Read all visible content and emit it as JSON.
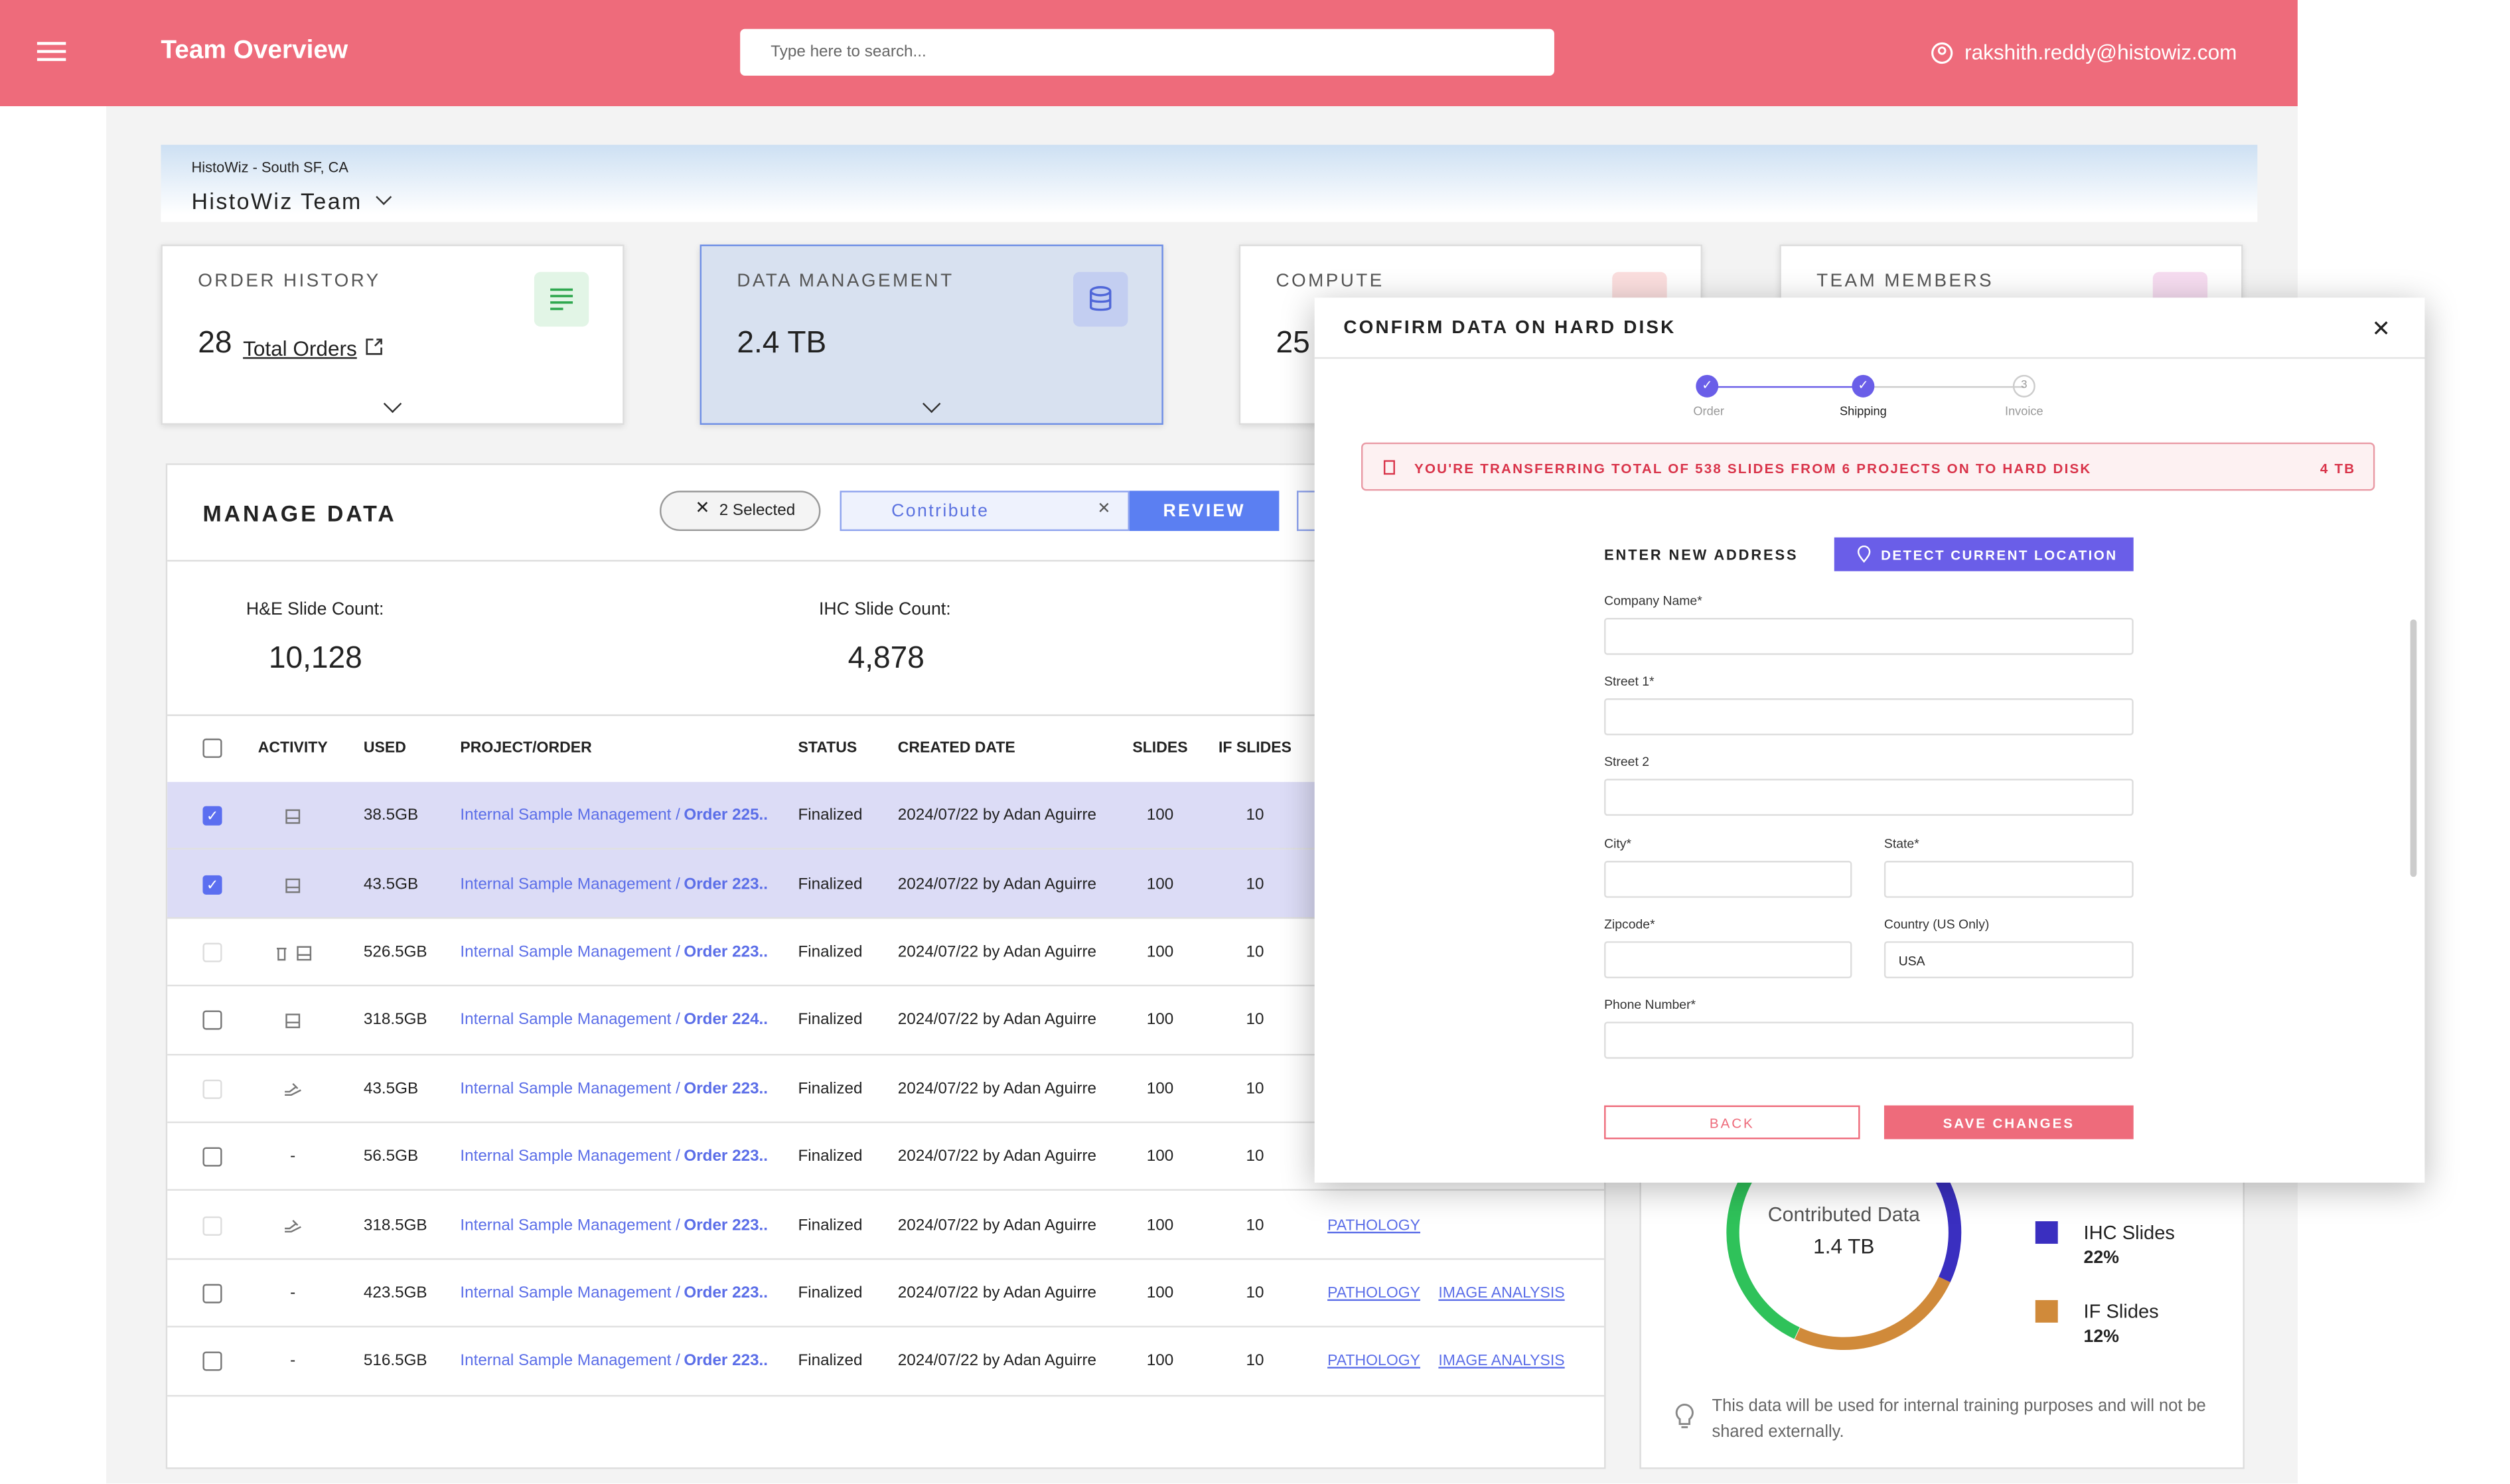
{
  "header": {
    "title": "Team Overview",
    "search_placeholder": "Type here to search...",
    "user": "rakshith.reddy@histowiz.com"
  },
  "team": {
    "location": "HistoWiz - South SF, CA",
    "name": "HistoWiz Team"
  },
  "cards": [
    {
      "title": "ORDER HISTORY",
      "value": "28",
      "label": "Total Orders"
    },
    {
      "title": "DATA MANAGEMENT",
      "value": "2.4 TB"
    },
    {
      "title": "COMPUTE",
      "value": "25"
    },
    {
      "title": "TEAM MEMBERS"
    }
  ],
  "manage": {
    "title": "MANAGE DATA",
    "selected": "2 Selected",
    "contribute": "Contribute",
    "review": "REVIEW",
    "counts": [
      {
        "label": "H&E Slide Count:",
        "value": "10,128"
      },
      {
        "label": "IHC Slide Count:",
        "value": "4,878"
      }
    ]
  },
  "table": {
    "columns": [
      "ACTIVITY",
      "USED",
      "PROJECT/ORDER",
      "STATUS",
      "CREATED DATE",
      "SLIDES",
      "IF SLIDES"
    ],
    "rows": [
      {
        "used": "38.5GB",
        "project": "Internal Sample Management /",
        "order": "Order 225..",
        "status": "Finalized",
        "created": "2024/07/22 by Adan Aguirre",
        "slides": "100",
        "if_slides": "10"
      },
      {
        "used": "43.5GB",
        "project": "Internal Sample Management /",
        "order": "Order 223..",
        "status": "Finalized",
        "created": "2024/07/22 by Adan Aguirre",
        "slides": "100",
        "if_slides": "10"
      },
      {
        "used": "526.5GB",
        "project": "Internal Sample Management /",
        "order": "Order 223..",
        "status": "Finalized",
        "created": "2024/07/22 by Adan Aguirre",
        "slides": "100",
        "if_slides": "10"
      },
      {
        "used": "318.5GB",
        "project": "Internal Sample Management /",
        "order": "Order 224..",
        "status": "Finalized",
        "created": "2024/07/22 by Adan Aguirre",
        "slides": "100",
        "if_slides": "10"
      },
      {
        "used": "43.5GB",
        "project": "Internal Sample Management /",
        "order": "Order 223..",
        "status": "Finalized",
        "created": "2024/07/22 by Adan Aguirre",
        "slides": "100",
        "if_slides": "10"
      },
      {
        "activity": "-",
        "used": "56.5GB",
        "project": "Internal Sample Management /",
        "order": "Order 223..",
        "status": "Finalized",
        "created": "2024/07/22 by Adan Aguirre",
        "slides": "100",
        "if_slides": "10"
      },
      {
        "used": "318.5GB",
        "project": "Internal Sample Management /",
        "order": "Order 223..",
        "status": "Finalized",
        "created": "2024/07/22 by Adan Aguirre",
        "slides": "100",
        "if_slides": "10",
        "tags": [
          "PATHOLOGY"
        ]
      },
      {
        "activity": "-",
        "used": "423.5GB",
        "project": "Internal Sample Management /",
        "order": "Order 223..",
        "status": "Finalized",
        "created": "2024/07/22 by Adan Aguirre",
        "slides": "100",
        "if_slides": "10",
        "tags": [
          "PATHOLOGY",
          "IMAGE ANALYSIS"
        ]
      },
      {
        "activity": "-",
        "used": "516.5GB",
        "project": "Internal Sample Management /",
        "order": "Order 223..",
        "status": "Finalized",
        "created": "2024/07/22 by Adan Aguirre",
        "slides": "100",
        "if_slides": "10",
        "tags": [
          "PATHOLOGY",
          "IMAGE ANALYSIS"
        ]
      }
    ]
  },
  "contributed": {
    "center_label": "Contributed Data",
    "center_value": "1.4 TB",
    "legend": [
      {
        "label": "IHC Slides",
        "value": "22%"
      },
      {
        "label": "IF Slides",
        "value": "12%"
      }
    ],
    "note": "This data will be used for internal training purposes and will not be shared externally."
  },
  "modal": {
    "title": "CONFIRM DATA ON HARD DISK",
    "steps": [
      {
        "label": "Order"
      },
      {
        "label": "Shipping"
      },
      {
        "number": "3",
        "label": "Invoice"
      }
    ],
    "alert": "YOU'RE TRANSFERRING TOTAL OF 538 SLIDES FROM 6 PROJECTS ON TO HARD DISK",
    "alert_size": "4 TB",
    "heading": "ENTER NEW ADDRESS",
    "detect": "DETECT CURRENT LOCATION",
    "fields": [
      {
        "label": "Company Name*"
      },
      {
        "label": "Street 1*"
      },
      {
        "label": "Street 2"
      },
      {
        "label": "City*"
      },
      {
        "label": "State*"
      },
      {
        "label": "Zipcode*"
      },
      {
        "label": "Country (US Only)",
        "value": "USA"
      },
      {
        "label": "Phone Number*"
      }
    ],
    "back": "BACK",
    "save": "SAVE CHANGES"
  }
}
